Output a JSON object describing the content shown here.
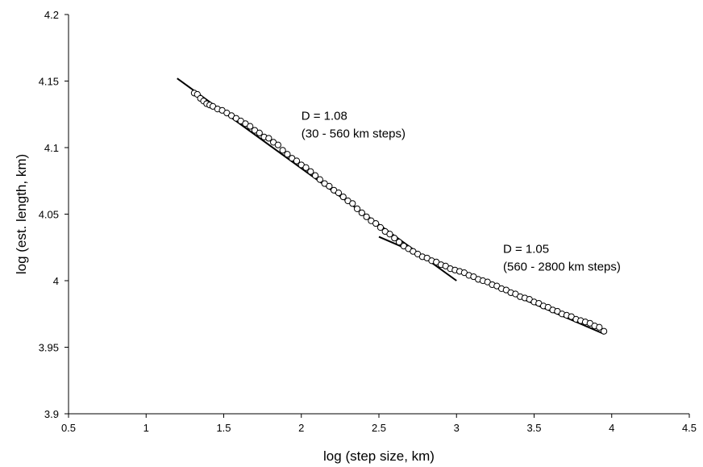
{
  "chart_data": {
    "type": "scatter",
    "xlabel": "log (step size, km)",
    "ylabel": "log (est. length, km)",
    "xlim": [
      0.5,
      4.5
    ],
    "ylim": [
      3.9,
      4.2
    ],
    "xticks": [
      "0.5",
      "1",
      "1.5",
      "2",
      "2.5",
      "3",
      "3.5",
      "4",
      "4.5"
    ],
    "yticks": [
      "3.9",
      "3.95",
      "4",
      "4.05",
      "4.1",
      "4.15",
      "4.2"
    ],
    "grid": false,
    "legend": "none",
    "marker": "open-circle",
    "series": [
      {
        "points": [
          [
            1.31,
            4.141
          ],
          [
            1.33,
            4.14
          ],
          [
            1.35,
            4.137
          ],
          [
            1.37,
            4.135
          ],
          [
            1.39,
            4.133
          ],
          [
            1.41,
            4.132
          ],
          [
            1.43,
            4.131
          ],
          [
            1.46,
            4.129
          ],
          [
            1.49,
            4.128
          ],
          [
            1.52,
            4.126
          ],
          [
            1.55,
            4.124
          ],
          [
            1.58,
            4.122
          ],
          [
            1.61,
            4.12
          ],
          [
            1.64,
            4.118
          ],
          [
            1.67,
            4.116
          ],
          [
            1.7,
            4.113
          ],
          [
            1.73,
            4.111
          ],
          [
            1.76,
            4.108
          ],
          [
            1.79,
            4.107
          ],
          [
            1.82,
            4.104
          ],
          [
            1.85,
            4.102
          ],
          [
            1.88,
            4.098
          ],
          [
            1.91,
            4.095
          ],
          [
            1.94,
            4.092
          ],
          [
            1.97,
            4.09
          ],
          [
            2.0,
            4.087
          ],
          [
            2.03,
            4.085
          ],
          [
            2.06,
            4.082
          ],
          [
            2.09,
            4.079
          ],
          [
            2.12,
            4.076
          ],
          [
            2.15,
            4.073
          ],
          [
            2.18,
            4.071
          ],
          [
            2.21,
            4.068
          ],
          [
            2.24,
            4.066
          ],
          [
            2.27,
            4.063
          ],
          [
            2.3,
            4.06
          ],
          [
            2.33,
            4.058
          ],
          [
            2.36,
            4.054
          ],
          [
            2.39,
            4.051
          ],
          [
            2.42,
            4.048
          ],
          [
            2.45,
            4.045
          ],
          [
            2.48,
            4.043
          ],
          [
            2.51,
            4.04
          ],
          [
            2.54,
            4.037
          ],
          [
            2.57,
            4.035
          ],
          [
            2.6,
            4.032
          ],
          [
            2.63,
            4.029
          ],
          [
            2.66,
            4.026
          ],
          [
            2.69,
            4.024
          ],
          [
            2.72,
            4.022
          ],
          [
            2.75,
            4.02
          ],
          [
            2.78,
            4.018
          ],
          [
            2.81,
            4.017
          ],
          [
            2.84,
            4.015
          ],
          [
            2.87,
            4.014
          ],
          [
            2.9,
            4.012
          ],
          [
            2.93,
            4.011
          ],
          [
            2.96,
            4.009
          ],
          [
            2.99,
            4.008
          ],
          [
            3.02,
            4.007
          ],
          [
            3.05,
            4.006
          ],
          [
            3.08,
            4.004
          ],
          [
            3.11,
            4.003
          ],
          [
            3.14,
            4.001
          ],
          [
            3.17,
            4.0
          ],
          [
            3.2,
            3.999
          ],
          [
            3.23,
            3.997
          ],
          [
            3.26,
            3.996
          ],
          [
            3.29,
            3.994
          ],
          [
            3.32,
            3.993
          ],
          [
            3.35,
            3.991
          ],
          [
            3.38,
            3.99
          ],
          [
            3.41,
            3.988
          ],
          [
            3.44,
            3.987
          ],
          [
            3.47,
            3.986
          ],
          [
            3.5,
            3.984
          ],
          [
            3.53,
            3.983
          ],
          [
            3.56,
            3.981
          ],
          [
            3.59,
            3.98
          ],
          [
            3.62,
            3.978
          ],
          [
            3.65,
            3.977
          ],
          [
            3.68,
            3.975
          ],
          [
            3.71,
            3.974
          ],
          [
            3.74,
            3.973
          ],
          [
            3.77,
            3.971
          ],
          [
            3.8,
            3.97
          ],
          [
            3.83,
            3.969
          ],
          [
            3.86,
            3.968
          ],
          [
            3.89,
            3.966
          ],
          [
            3.92,
            3.965
          ],
          [
            3.95,
            3.962
          ]
        ]
      }
    ],
    "fit_lines": [
      {
        "x": [
          1.2,
          3.0
        ],
        "y": [
          4.152,
          4.0
        ]
      },
      {
        "x": [
          2.5,
          3.95
        ],
        "y": [
          4.033,
          3.96
        ]
      }
    ],
    "annotations": [
      {
        "lines": [
          "D = 1.08",
          "(30 - 560 km steps)"
        ],
        "x": 2.0,
        "y": 4.121
      },
      {
        "lines": [
          "D = 1.05",
          "(560 - 2800 km steps)"
        ],
        "x": 3.3,
        "y": 4.021
      }
    ]
  }
}
